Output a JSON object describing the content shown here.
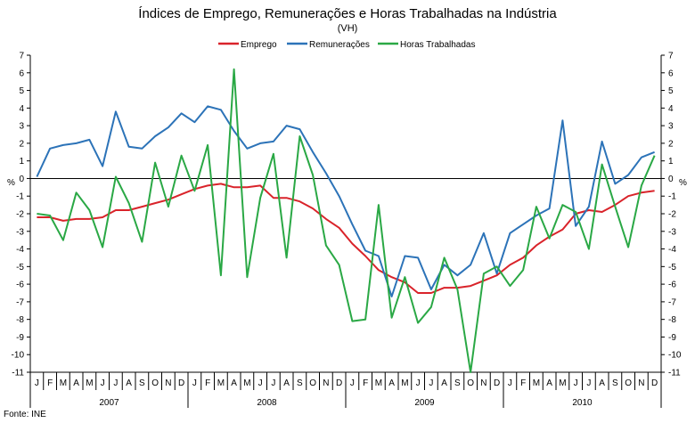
{
  "chart_data": {
    "type": "line",
    "title": "Índices de Emprego, Remunerações e Horas Trabalhadas na Indústria",
    "subtitle": "(VH)",
    "ylabel_left": "%",
    "ylabel_right": "%",
    "ylim": [
      -11,
      7
    ],
    "yticks": [
      7,
      6,
      5,
      4,
      3,
      2,
      1,
      0,
      -1,
      -2,
      -3,
      -4,
      -5,
      -6,
      -7,
      -8,
      -9,
      -10,
      -11
    ],
    "month_labels": [
      "J",
      "F",
      "M",
      "A",
      "M",
      "J",
      "J",
      "A",
      "S",
      "O",
      "N",
      "D"
    ],
    "years": [
      "2007",
      "2008",
      "2009",
      "2010"
    ],
    "source": "Fonte: INE",
    "series": [
      {
        "name": "Emprego",
        "color": "#d9232a",
        "values": [
          -2.2,
          -2.2,
          -2.4,
          -2.3,
          -2.3,
          -2.2,
          -1.8,
          -1.8,
          -1.6,
          -1.4,
          -1.2,
          -0.9,
          -0.6,
          -0.4,
          -0.3,
          -0.5,
          -0.5,
          -0.4,
          -1.1,
          -1.1,
          -1.3,
          -1.7,
          -2.3,
          -2.8,
          -3.7,
          -4.4,
          -5.2,
          -5.6,
          -5.9,
          -6.5,
          -6.5,
          -6.2,
          -6.2,
          -6.1,
          -5.8,
          -5.5,
          -4.9,
          -4.5,
          -3.8,
          -3.3,
          -2.9,
          -2.0,
          -1.8,
          -1.9,
          -1.5,
          -1.0,
          -0.8,
          -0.7
        ]
      },
      {
        "name": "Remunerações",
        "color": "#2c73b8",
        "values": [
          0.1,
          1.7,
          1.9,
          2.0,
          2.2,
          0.7,
          3.8,
          1.8,
          1.7,
          2.4,
          2.9,
          3.7,
          3.2,
          4.1,
          3.9,
          2.7,
          1.7,
          2.0,
          2.1,
          3.0,
          2.8,
          1.5,
          0.3,
          -1.0,
          -2.6,
          -4.1,
          -4.4,
          -6.7,
          -4.4,
          -4.5,
          -6.3,
          -4.9,
          -5.5,
          -4.9,
          -3.1,
          -5.4,
          -3.1,
          -2.6,
          -2.1,
          -1.7,
          3.3,
          -2.7,
          -1.6,
          2.1,
          -0.3,
          0.2,
          1.2,
          1.5
        ]
      },
      {
        "name": "Horas Trabalhadas",
        "color": "#2aa845",
        "values": [
          -2.0,
          -2.1,
          -3.5,
          -0.8,
          -1.8,
          -3.9,
          0.1,
          -1.4,
          -3.6,
          0.9,
          -1.6,
          1.3,
          -0.7,
          1.9,
          -5.5,
          6.2,
          -5.6,
          -1.1,
          1.4,
          -4.5,
          2.4,
          0.2,
          -3.8,
          -4.9,
          -8.1,
          -8.0,
          -1.5,
          -7.9,
          -5.6,
          -8.2,
          -7.3,
          -4.5,
          -6.3,
          -11.0,
          -5.4,
          -5.0,
          -6.1,
          -5.2,
          -1.6,
          -3.4,
          -1.5,
          -1.9,
          -4.0,
          0.8,
          -1.6,
          -3.9,
          -0.4,
          1.3
        ]
      }
    ]
  }
}
